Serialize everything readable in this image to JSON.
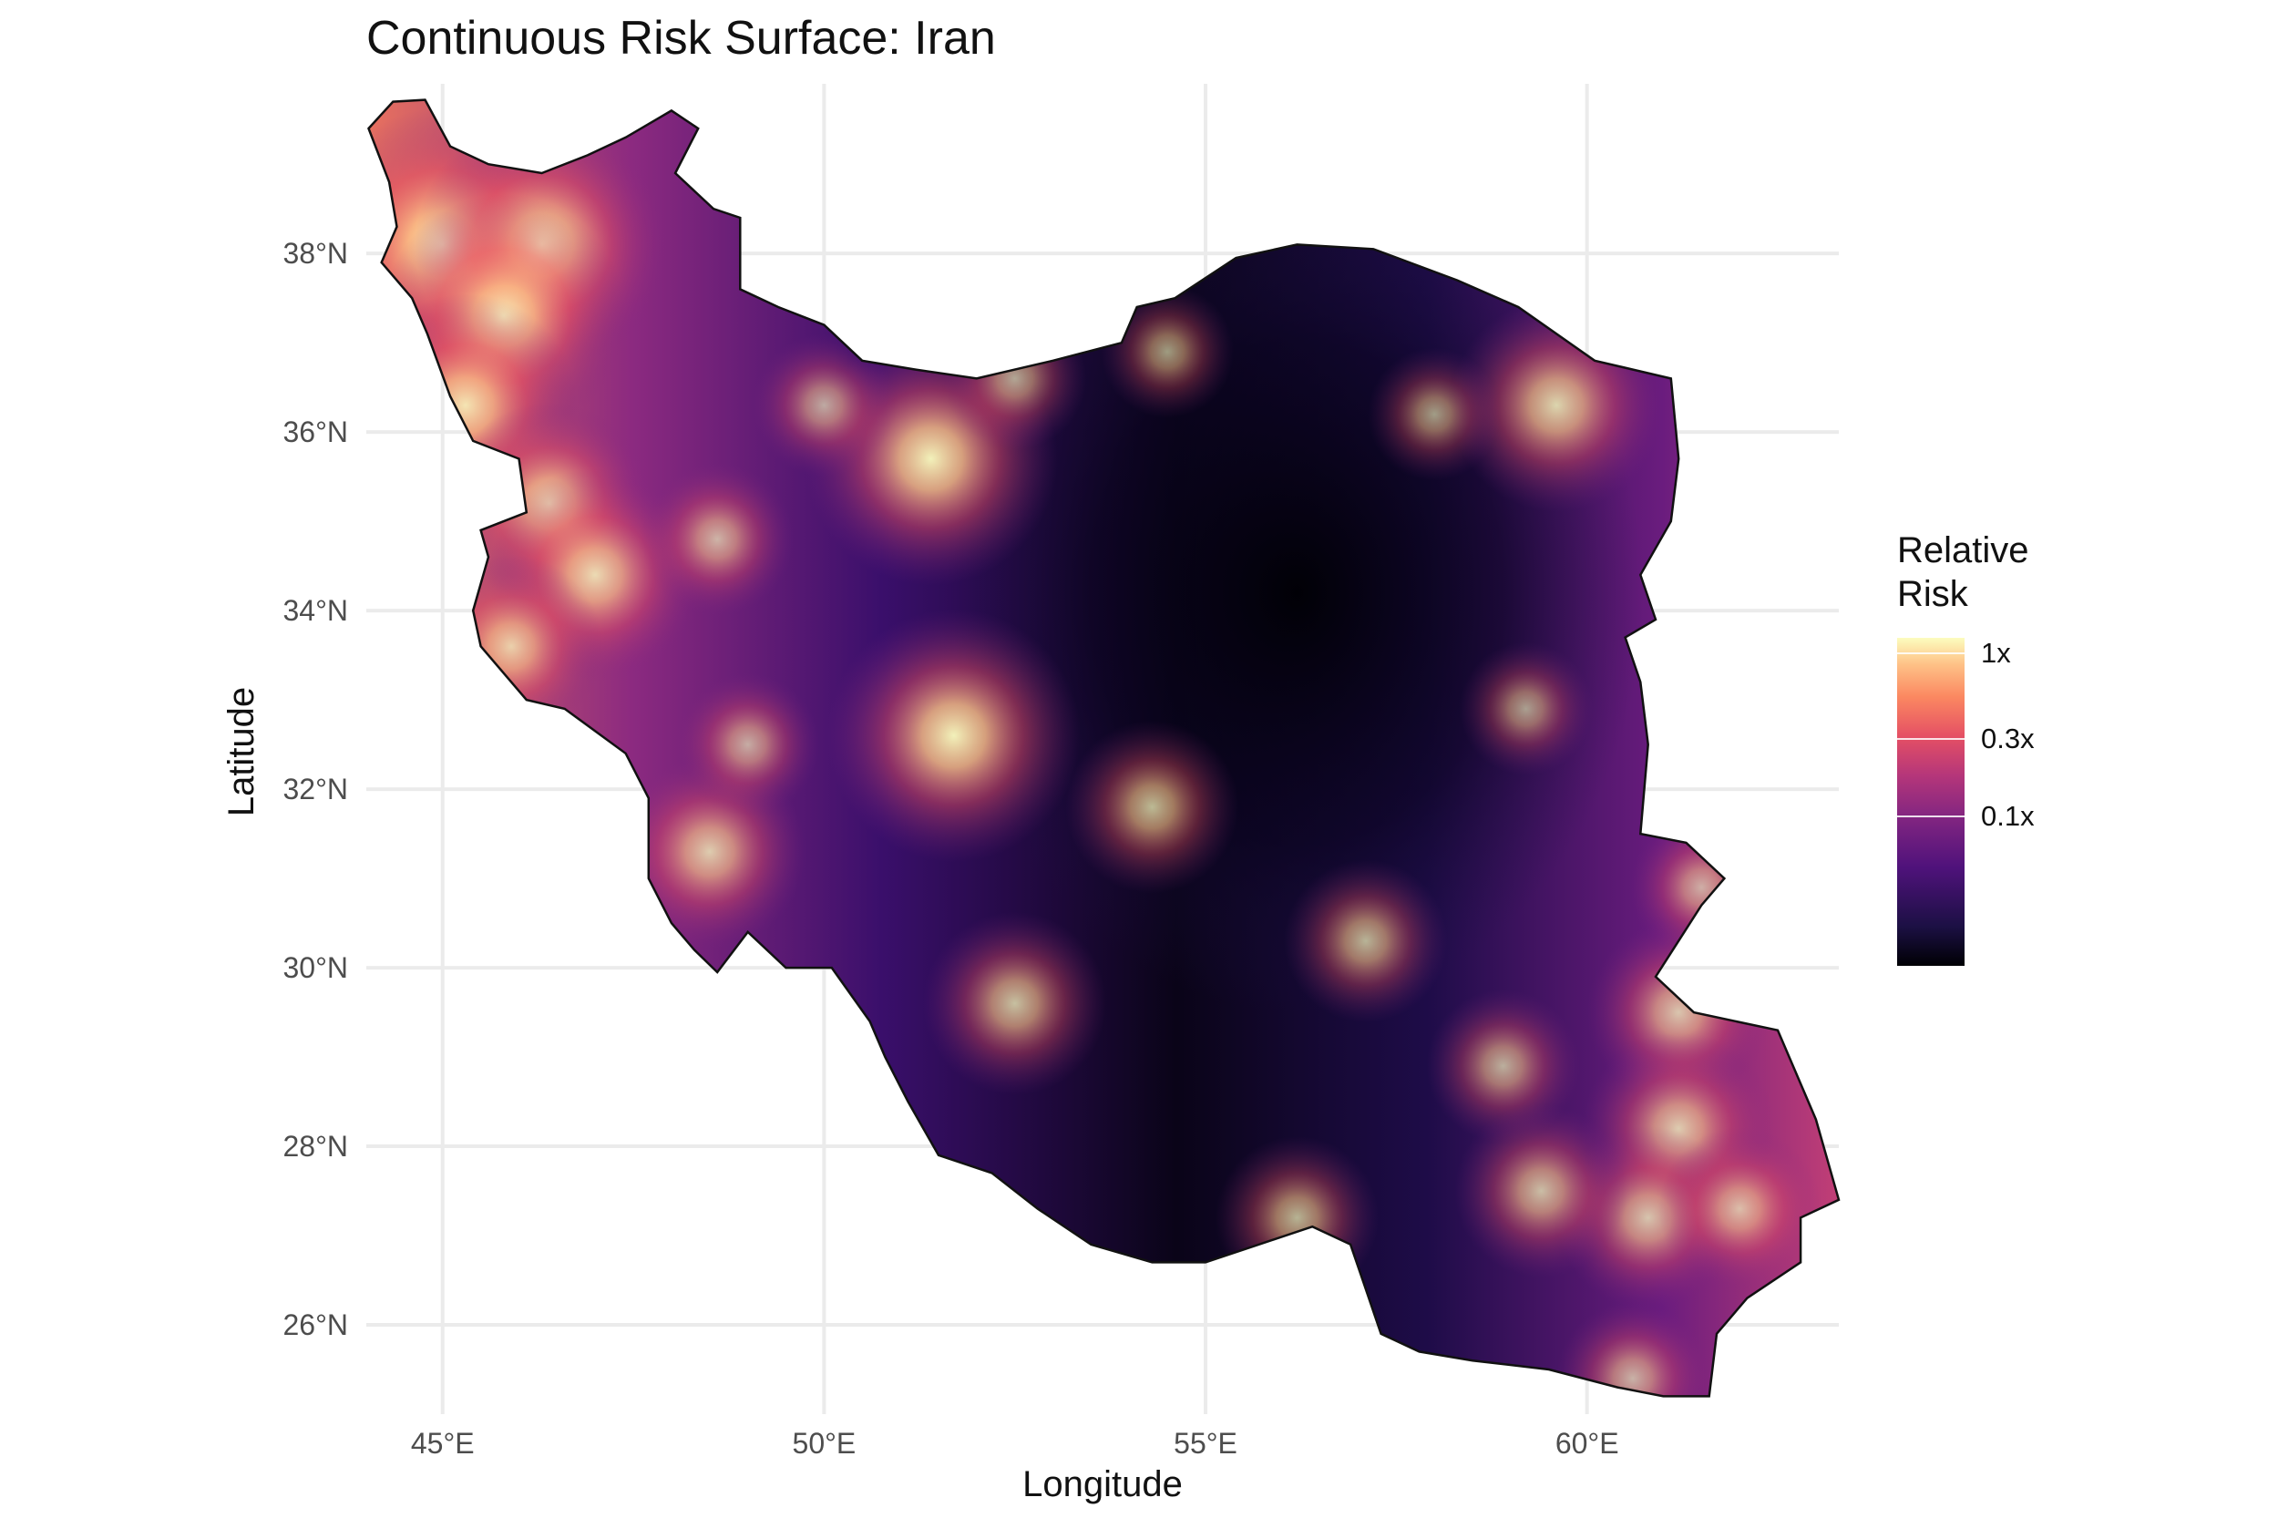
{
  "title": "Continuous Risk Surface: Iran",
  "x_axis_label": "Longitude",
  "y_axis_label": "Latitude",
  "legend": {
    "title": "Relative\nRisk",
    "labels": [
      {
        "text": "1x",
        "value": 1.0
      },
      {
        "text": "0.3x",
        "value": 0.3
      },
      {
        "text": "0.1x",
        "value": 0.1
      }
    ],
    "colormap": "magma",
    "scale": "log"
  },
  "chart_data": {
    "type": "heatmap",
    "title": "Continuous Risk Surface: Iran",
    "xlabel": "Longitude",
    "ylabel": "Latitude",
    "xlim": [
      44,
      63.3
    ],
    "ylim": [
      25,
      39.9
    ],
    "x_ticks": [
      {
        "value": 45,
        "label": "45°E"
      },
      {
        "value": 50,
        "label": "50°E"
      },
      {
        "value": 55,
        "label": "55°E"
      },
      {
        "value": 60,
        "label": "60°E"
      }
    ],
    "y_ticks": [
      {
        "value": 26,
        "label": "26°N"
      },
      {
        "value": 28,
        "label": "28°N"
      },
      {
        "value": 30,
        "label": "30°N"
      },
      {
        "value": 32,
        "label": "32°N"
      },
      {
        "value": 34,
        "label": "34°N"
      },
      {
        "value": 36,
        "label": "36°N"
      },
      {
        "value": 38,
        "label": "38°N"
      }
    ],
    "grid": true,
    "legend_position": "right",
    "region": "Iran",
    "colors": {
      "low": "#000004",
      "mid": "#812581",
      "high": "#fcfdbf",
      "grid": "#ebebeb"
    },
    "boundary": [
      [
        44.03,
        39.4
      ],
      [
        44.35,
        39.7
      ],
      [
        44.77,
        39.72
      ],
      [
        45.1,
        39.2
      ],
      [
        45.6,
        39.0
      ],
      [
        46.3,
        38.9
      ],
      [
        46.9,
        39.1
      ],
      [
        47.4,
        39.3
      ],
      [
        48.0,
        39.6
      ],
      [
        48.35,
        39.4
      ],
      [
        48.05,
        38.9
      ],
      [
        48.55,
        38.5
      ],
      [
        48.9,
        38.4
      ],
      [
        48.9,
        37.6
      ],
      [
        49.4,
        37.4
      ],
      [
        50.0,
        37.2
      ],
      [
        50.5,
        36.8
      ],
      [
        51.2,
        36.7
      ],
      [
        52.0,
        36.6
      ],
      [
        53.0,
        36.8
      ],
      [
        53.9,
        37.0
      ],
      [
        54.1,
        37.4
      ],
      [
        54.6,
        37.5
      ],
      [
        55.4,
        37.95
      ],
      [
        56.2,
        38.1
      ],
      [
        57.2,
        38.05
      ],
      [
        58.3,
        37.7
      ],
      [
        59.1,
        37.4
      ],
      [
        60.1,
        36.8
      ],
      [
        61.1,
        36.6
      ],
      [
        61.2,
        35.7
      ],
      [
        61.1,
        35.0
      ],
      [
        60.7,
        34.4
      ],
      [
        60.9,
        33.9
      ],
      [
        60.5,
        33.7
      ],
      [
        60.7,
        33.2
      ],
      [
        60.8,
        32.5
      ],
      [
        60.7,
        31.5
      ],
      [
        61.3,
        31.4
      ],
      [
        61.8,
        31.0
      ],
      [
        61.5,
        30.7
      ],
      [
        60.9,
        29.9
      ],
      [
        61.4,
        29.5
      ],
      [
        62.5,
        29.3
      ],
      [
        63.0,
        28.3
      ],
      [
        63.3,
        27.4
      ],
      [
        62.8,
        27.2
      ],
      [
        62.8,
        26.7
      ],
      [
        62.1,
        26.3
      ],
      [
        61.7,
        25.9
      ],
      [
        61.6,
        25.2
      ],
      [
        61.0,
        25.2
      ],
      [
        60.4,
        25.3
      ],
      [
        59.5,
        25.5
      ],
      [
        58.5,
        25.6
      ],
      [
        57.8,
        25.7
      ],
      [
        57.3,
        25.9
      ],
      [
        57.1,
        26.4
      ],
      [
        56.9,
        26.9
      ],
      [
        56.4,
        27.1
      ],
      [
        55.7,
        26.9
      ],
      [
        55.0,
        26.7
      ],
      [
        54.3,
        26.7
      ],
      [
        53.5,
        26.9
      ],
      [
        52.8,
        27.3
      ],
      [
        52.2,
        27.7
      ],
      [
        51.5,
        27.9
      ],
      [
        51.1,
        28.5
      ],
      [
        50.8,
        29.0
      ],
      [
        50.6,
        29.4
      ],
      [
        50.1,
        30.0
      ],
      [
        49.5,
        30.0
      ],
      [
        49.0,
        30.4
      ],
      [
        48.6,
        29.95
      ],
      [
        48.3,
        30.2
      ],
      [
        48.0,
        30.5
      ],
      [
        47.7,
        31.0
      ],
      [
        47.7,
        31.9
      ],
      [
        47.4,
        32.4
      ],
      [
        46.6,
        32.9
      ],
      [
        46.1,
        33.0
      ],
      [
        45.5,
        33.6
      ],
      [
        45.4,
        34.0
      ],
      [
        45.6,
        34.6
      ],
      [
        45.5,
        34.9
      ],
      [
        46.1,
        35.1
      ],
      [
        46.0,
        35.7
      ],
      [
        45.4,
        35.9
      ],
      [
        45.1,
        36.4
      ],
      [
        44.8,
        37.1
      ],
      [
        44.6,
        37.5
      ],
      [
        44.2,
        37.9
      ],
      [
        44.4,
        38.3
      ],
      [
        44.3,
        38.8
      ],
      [
        44.03,
        39.4
      ]
    ],
    "hotspots": [
      {
        "lon": 45.0,
        "lat": 38.1,
        "risk": 1.0
      },
      {
        "lon": 46.3,
        "lat": 38.1,
        "risk": 0.9
      },
      {
        "lon": 45.8,
        "lat": 37.3,
        "risk": 0.85
      },
      {
        "lon": 45.3,
        "lat": 36.3,
        "risk": 0.75
      },
      {
        "lon": 46.4,
        "lat": 35.2,
        "risk": 0.65
      },
      {
        "lon": 47.0,
        "lat": 34.4,
        "risk": 0.7
      },
      {
        "lon": 45.9,
        "lat": 33.6,
        "risk": 0.55
      },
      {
        "lon": 48.5,
        "lat": 31.3,
        "risk": 0.6
      },
      {
        "lon": 49.0,
        "lat": 32.5,
        "risk": 0.35
      },
      {
        "lon": 48.6,
        "lat": 34.8,
        "risk": 0.4
      },
      {
        "lon": 51.4,
        "lat": 35.7,
        "risk": 0.9
      },
      {
        "lon": 50.0,
        "lat": 36.3,
        "risk": 0.35
      },
      {
        "lon": 51.7,
        "lat": 32.6,
        "risk": 0.9
      },
      {
        "lon": 52.5,
        "lat": 29.6,
        "risk": 0.55
      },
      {
        "lon": 54.5,
        "lat": 36.9,
        "risk": 0.3
      },
      {
        "lon": 52.5,
        "lat": 36.6,
        "risk": 0.35
      },
      {
        "lon": 59.6,
        "lat": 36.3,
        "risk": 0.7
      },
      {
        "lon": 58.0,
        "lat": 36.2,
        "risk": 0.3
      },
      {
        "lon": 59.2,
        "lat": 32.9,
        "risk": 0.3
      },
      {
        "lon": 57.1,
        "lat": 30.3,
        "risk": 0.45
      },
      {
        "lon": 54.3,
        "lat": 31.8,
        "risk": 0.5
      },
      {
        "lon": 56.2,
        "lat": 27.2,
        "risk": 0.45
      },
      {
        "lon": 58.9,
        "lat": 28.9,
        "risk": 0.4
      },
      {
        "lon": 61.2,
        "lat": 29.5,
        "risk": 0.55
      },
      {
        "lon": 61.2,
        "lat": 28.2,
        "risk": 0.6
      },
      {
        "lon": 60.8,
        "lat": 27.2,
        "risk": 0.55
      },
      {
        "lon": 59.4,
        "lat": 27.5,
        "risk": 0.5
      },
      {
        "lon": 62.0,
        "lat": 27.3,
        "risk": 0.45
      },
      {
        "lon": 61.5,
        "lat": 30.9,
        "risk": 0.35
      },
      {
        "lon": 60.6,
        "lat": 25.4,
        "risk": 0.4
      }
    ]
  }
}
